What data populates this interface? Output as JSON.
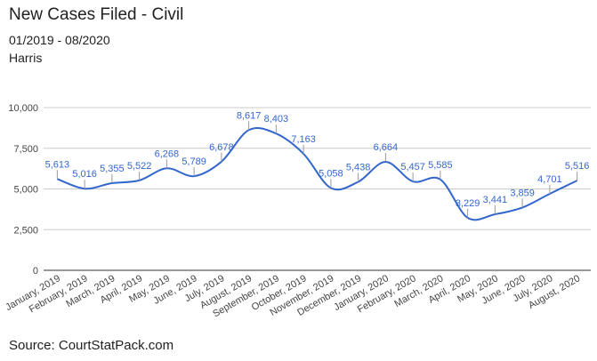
{
  "chart_data": {
    "type": "line",
    "title": "New Cases Filed - Civil",
    "subtitle": "01/2019 - 08/2020",
    "subtitle2": "Harris",
    "source": "Source: CourtStatPack.com",
    "xlabel": "",
    "ylabel": "",
    "ylim": [
      0,
      10000
    ],
    "y_ticks": [
      {
        "value": 0,
        "label": "0"
      },
      {
        "value": 2500,
        "label": "2,500"
      },
      {
        "value": 5000,
        "label": "5,000"
      },
      {
        "value": 7500,
        "label": "7,500"
      },
      {
        "value": 10000,
        "label": "10,000"
      }
    ],
    "categories": [
      "January, 2019",
      "February, 2019",
      "March, 2019",
      "April, 2019",
      "May, 2019",
      "June, 2019",
      "July, 2019",
      "August, 2019",
      "September, 2019",
      "October, 2019",
      "November, 2019",
      "December, 2019",
      "January, 2020",
      "February, 2020",
      "March, 2020",
      "April, 2020",
      "May, 2020",
      "June, 2020",
      "July, 2020",
      "August, 2020"
    ],
    "values": [
      5613,
      5016,
      5355,
      5522,
      6268,
      5789,
      6678,
      8617,
      8403,
      7163,
      5058,
      5438,
      6664,
      5457,
      5585,
      3229,
      3441,
      3859,
      4701,
      5516
    ],
    "value_labels": [
      "5,613",
      "5,016",
      "5,355",
      "5,522",
      "6,268",
      "5,789",
      "6,678",
      "8,617",
      "8,403",
      "7,163",
      "5,058",
      "5,438",
      "6,664",
      "5,457",
      "5,585",
      "3,229",
      "3,441",
      "3,859",
      "4,701",
      "5,516"
    ],
    "grid": true,
    "legend": "none",
    "line_color": "#3366cc"
  }
}
